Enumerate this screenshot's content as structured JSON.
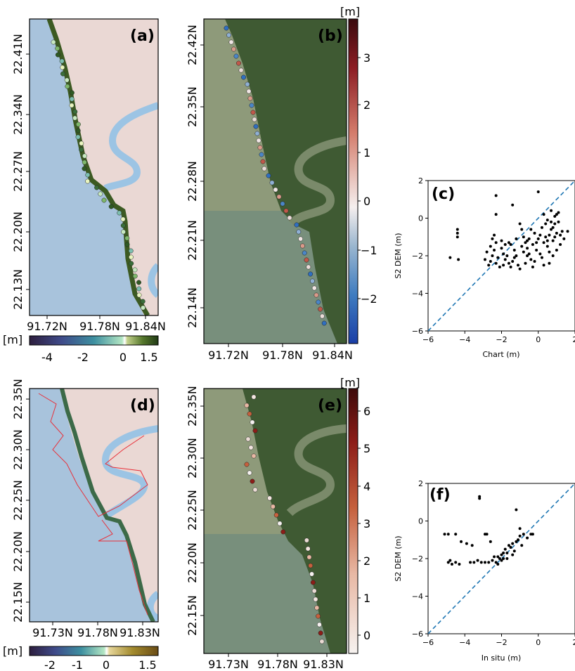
{
  "panels": {
    "a": {
      "label": "(a)",
      "yticks": [
        "22.41N",
        "22.34N",
        "22.27N",
        "22.20N",
        "22.13N"
      ],
      "xticks": [
        "91.72N",
        "91.78N",
        "91.84N"
      ]
    },
    "b": {
      "label": "(b)",
      "yticks": [
        "22.42N",
        "22.35N",
        "22.28N",
        "22.21N",
        "22.14N"
      ],
      "xticks": [
        "91.72N",
        "91.78N",
        "91.84N"
      ]
    },
    "d": {
      "label": "(d)",
      "yticks": [
        "22.35N",
        "22.30N",
        "22.25N",
        "22.20N",
        "22.15N"
      ],
      "xticks": [
        "91.73N",
        "91.78N",
        "91.83N"
      ]
    },
    "e": {
      "label": "(e)",
      "yticks": [
        "22.35N",
        "22.30N",
        "22.25N",
        "22.20N",
        "22.15N"
      ],
      "xticks": [
        "91.73N",
        "91.78N",
        "91.83N"
      ]
    }
  },
  "colorbars": {
    "a_horizontal": {
      "unit": "[m]",
      "ticks": [
        "-4",
        "-2",
        "0",
        "1.5"
      ]
    },
    "b_vertical": {
      "unit": "[m]",
      "ticks": [
        "3",
        "2",
        "1",
        "0",
        "−1",
        "−2"
      ]
    },
    "d_horizontal": {
      "unit": "[m]",
      "ticks": [
        "-2",
        "-1",
        "0",
        "1.5"
      ]
    },
    "e_vertical": {
      "unit": "[m]",
      "ticks": [
        "6",
        "5",
        "4",
        "3",
        "2",
        "1",
        "0"
      ]
    }
  },
  "colors": {
    "sea": "#a8c3dc",
    "land": "#ead8d4",
    "river": "#9cc4e4",
    "satellite_water": "#8e9a7a",
    "satellite_land": "#3f5a33",
    "scatter_points": "#000000",
    "identity_line": "#1f77b4",
    "ship_track": "#e8303a"
  },
  "chart_data": [
    {
      "type": "scatter",
      "panel": "(c)",
      "xlabel": "Chart (m)",
      "ylabel": "S2 DEM (m)",
      "xlim": [
        -6,
        2
      ],
      "ylim": [
        -6,
        2
      ],
      "xticks": [
        "−6",
        "−4",
        "−2",
        "0",
        "2"
      ],
      "yticks": [
        "2",
        "0",
        "−2",
        "−4",
        "−6"
      ],
      "identity_line": true,
      "points": [
        [
          -4.4,
          -0.6
        ],
        [
          -4.4,
          -0.8
        ],
        [
          -4.4,
          -1.0
        ],
        [
          -4.35,
          -2.2
        ],
        [
          -4.8,
          -2.1
        ],
        [
          -2.3,
          1.2
        ],
        [
          -2.3,
          0.2
        ],
        [
          -2.4,
          -0.9
        ],
        [
          -2.5,
          -1.1
        ],
        [
          -2.3,
          -1.3
        ],
        [
          -2.6,
          -1.5
        ],
        [
          -2.4,
          -1.7
        ],
        [
          -2.8,
          -1.8
        ],
        [
          -2.5,
          -2.0
        ],
        [
          -2.2,
          -2.1
        ],
        [
          -2.9,
          -2.2
        ],
        [
          -2.6,
          -2.3
        ],
        [
          -2.3,
          -2.4
        ],
        [
          -2.1,
          -2.6
        ],
        [
          -2.7,
          -2.5
        ],
        [
          -1.9,
          -1.9
        ],
        [
          -1.8,
          -2.2
        ],
        [
          -1.7,
          -2.0
        ],
        [
          -1.6,
          -2.4
        ],
        [
          -1.5,
          -2.6
        ],
        [
          -1.4,
          -2.3
        ],
        [
          -1.3,
          -1.7
        ],
        [
          -1.2,
          -2.0
        ],
        [
          -1.1,
          -2.5
        ],
        [
          -1.0,
          -2.7
        ],
        [
          -1.5,
          -1.4
        ],
        [
          -1.4,
          0.7
        ],
        [
          -1.0,
          -0.3
        ],
        [
          -0.9,
          -0.6
        ],
        [
          -0.8,
          -1.0
        ],
        [
          -0.7,
          -1.3
        ],
        [
          -0.6,
          -1.6
        ],
        [
          -0.5,
          -1.9
        ],
        [
          -0.4,
          -2.2
        ],
        [
          -0.3,
          -2.6
        ],
        [
          -1.8,
          -1.4
        ],
        [
          -1.2,
          -1.1
        ],
        [
          -0.9,
          -1.5
        ],
        [
          -0.6,
          -1.2
        ],
        [
          -0.3,
          -1.4
        ],
        [
          -0.1,
          -1.7
        ],
        [
          0.0,
          -1.1
        ],
        [
          0.1,
          -1.9
        ],
        [
          0.2,
          -2.1
        ],
        [
          0.3,
          -1.3
        ],
        [
          0.4,
          -1.0
        ],
        [
          0.5,
          -1.5
        ],
        [
          0.6,
          -0.9
        ],
        [
          0.7,
          -0.6
        ],
        [
          0.8,
          -1.2
        ],
        [
          0.9,
          -0.3
        ],
        [
          1.0,
          -0.8
        ],
        [
          1.1,
          0.3
        ],
        [
          1.2,
          -1.4
        ],
        [
          1.3,
          -0.7
        ],
        [
          0.0,
          1.4
        ],
        [
          0.3,
          0.2
        ],
        [
          0.5,
          -0.1
        ],
        [
          0.7,
          0.4
        ],
        [
          0.9,
          0.1
        ],
        [
          1.1,
          -0.2
        ],
        [
          0.2,
          -0.5
        ],
        [
          0.4,
          -0.3
        ],
        [
          0.6,
          -1.8
        ],
        [
          0.8,
          -2.0
        ],
        [
          1.0,
          -1.7
        ],
        [
          -0.2,
          -0.8
        ],
        [
          -0.1,
          -1.3
        ],
        [
          0.3,
          -2.5
        ],
        [
          0.5,
          -1.2
        ],
        [
          0.8,
          -0.5
        ],
        [
          1.0,
          0.2
        ],
        [
          1.2,
          -0.9
        ],
        [
          -0.4,
          -0.6
        ],
        [
          -0.6,
          -2.0
        ],
        [
          -2.0,
          -1.6
        ],
        [
          -1.6,
          -1.3
        ],
        [
          -1.3,
          -2.1
        ],
        [
          -0.8,
          -1.8
        ],
        [
          -0.2,
          -2.3
        ],
        [
          0.6,
          -2.4
        ],
        [
          0.1,
          -0.9
        ],
        [
          -0.5,
          -1.1
        ],
        [
          0.9,
          -1.0
        ],
        [
          1.4,
          -1.1
        ],
        [
          1.6,
          -0.7
        ],
        [
          0.7,
          -0.2
        ],
        [
          -0.7,
          -2.4
        ],
        [
          -1.9,
          -2.5
        ],
        [
          -2.0,
          -1.2
        ]
      ]
    },
    {
      "type": "scatter",
      "panel": "(f)",
      "xlabel": "In situ (m)",
      "ylabel": "S2 DEM (m)",
      "xlim": [
        -6,
        2
      ],
      "ylim": [
        -6,
        2
      ],
      "xticks": [
        "−6",
        "−4",
        "−2",
        "0",
        "2"
      ],
      "yticks": [
        "2",
        "0",
        "−2",
        "−4",
        "−6"
      ],
      "identity_line": true,
      "points": [
        [
          -3.2,
          1.3
        ],
        [
          -3.2,
          1.2
        ],
        [
          -5.1,
          -0.7
        ],
        [
          -4.9,
          -0.7
        ],
        [
          -4.5,
          -0.7
        ],
        [
          -4.2,
          -1.1
        ],
        [
          -3.9,
          -1.2
        ],
        [
          -3.6,
          -1.3
        ],
        [
          -2.9,
          -0.7
        ],
        [
          -2.8,
          -0.7
        ],
        [
          -2.6,
          -1.1
        ],
        [
          -4.8,
          -2.1
        ],
        [
          -4.7,
          -2.3
        ],
        [
          -4.5,
          -2.2
        ],
        [
          -4.3,
          -2.3
        ],
        [
          -4.9,
          -2.2
        ],
        [
          -3.7,
          -2.2
        ],
        [
          -3.5,
          -2.2
        ],
        [
          -3.3,
          -2.1
        ],
        [
          -3.1,
          -2.2
        ],
        [
          -2.9,
          -2.2
        ],
        [
          -2.7,
          -2.2
        ],
        [
          -2.5,
          -2.1
        ],
        [
          -2.3,
          -2.2
        ],
        [
          -2.2,
          -1.9
        ],
        [
          -2.1,
          -2.0
        ],
        [
          -2.0,
          -1.8
        ],
        [
          -1.9,
          -2.0
        ],
        [
          -2.4,
          -1.9
        ],
        [
          -2.2,
          -2.3
        ],
        [
          -1.8,
          -1.5
        ],
        [
          -1.7,
          -1.7
        ],
        [
          -1.6,
          -1.3
        ],
        [
          -1.5,
          -1.4
        ],
        [
          -1.4,
          -1.2
        ],
        [
          -1.3,
          -1.6
        ],
        [
          -1.2,
          -1.1
        ],
        [
          -1.1,
          -1.0
        ],
        [
          -1.0,
          -0.8
        ],
        [
          -0.9,
          -1.3
        ],
        [
          -1.2,
          0.6
        ],
        [
          -1.0,
          -0.4
        ],
        [
          -0.8,
          -0.7
        ],
        [
          -0.6,
          -0.9
        ],
        [
          -0.4,
          -0.7
        ],
        [
          -0.3,
          -0.7
        ],
        [
          -1.7,
          -2.0
        ],
        [
          -1.9,
          -1.7
        ],
        [
          -1.4,
          -1.8
        ],
        [
          -2.0,
          -2.1
        ]
      ]
    }
  ]
}
